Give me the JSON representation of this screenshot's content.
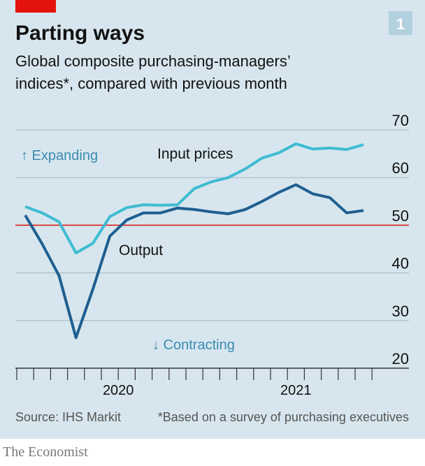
{
  "chart_data": {
    "type": "line",
    "title": "Parting ways",
    "subtitle_lines": [
      "Global composite purchasing-managers’",
      "indices*, compared with previous month"
    ],
    "badge": "1",
    "year_labels": [
      {
        "label": "2020",
        "months": 12
      },
      {
        "label": "2021",
        "months": 9
      }
    ],
    "series": [
      {
        "name": "Input prices",
        "color": "#3ebcd2",
        "values": [
          53.9,
          52.6,
          50.7,
          44.2,
          46.2,
          51.8,
          53.7,
          54.3,
          54.2,
          54.3,
          57.7,
          59.1,
          60.0,
          61.8,
          64.1,
          65.2,
          67.1,
          66.0,
          66.2,
          65.9,
          66.9
        ]
      },
      {
        "name": "Output",
        "color": "#1f5f91",
        "values": [
          52.1,
          46.1,
          39.4,
          26.4,
          36.6,
          47.7,
          51.1,
          52.6,
          52.6,
          53.6,
          53.3,
          52.8,
          52.4,
          53.3,
          55.0,
          56.9,
          58.5,
          56.6,
          55.8,
          52.6,
          53.1
        ]
      }
    ],
    "ylim": [
      20,
      70
    ],
    "yticks": [
      20,
      30,
      40,
      50,
      60,
      70
    ],
    "grid": true,
    "reference_line": {
      "value": 50,
      "color": "#e3120b"
    },
    "annotations": [
      "↑ Expanding",
      "↓ Contracting"
    ],
    "source": "Source: IHS Markit",
    "footnote": "*Based on a survey of purchasing executives",
    "brand": "The Economist"
  }
}
